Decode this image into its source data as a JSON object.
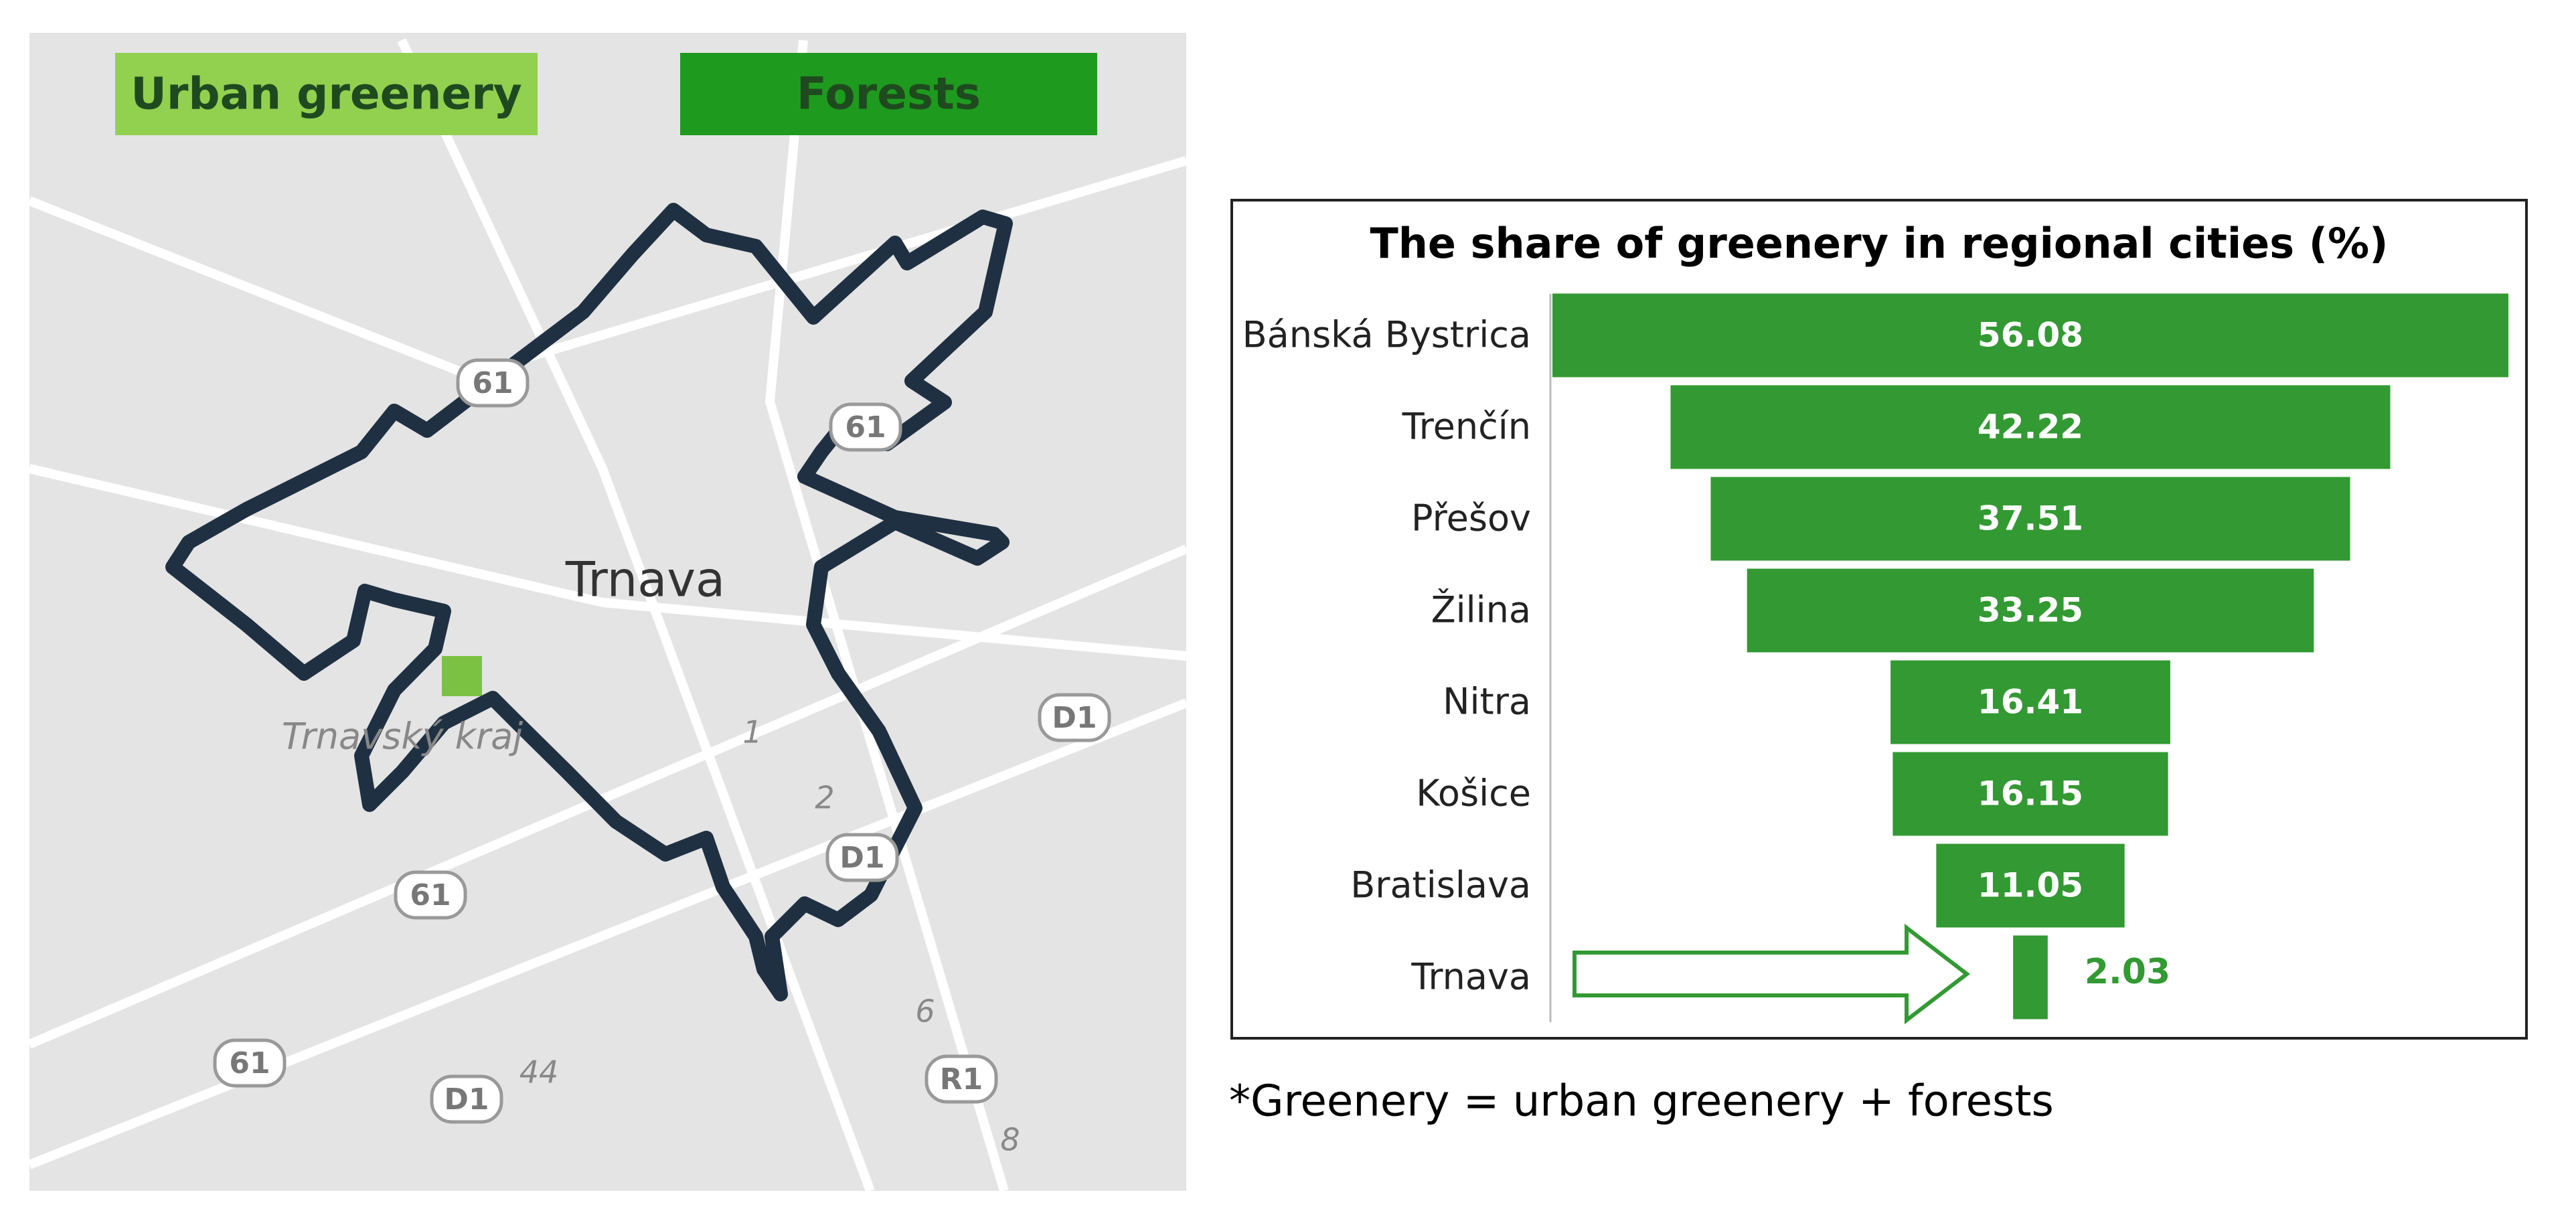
{
  "map": {
    "legend": [
      {
        "label": "Urban greenery",
        "color": "#92d050"
      },
      {
        "label": "Forests",
        "color": "#1e9a1e"
      }
    ],
    "city_label": "Trnava",
    "region_label": "Trnavský kraj",
    "road_labels": [
      "61",
      "61",
      "61",
      "61",
      "D1",
      "D1",
      "D1",
      "R1"
    ],
    "numbers": [
      "1",
      "2",
      "6",
      "8",
      "44"
    ]
  },
  "chart_data": {
    "type": "funnel",
    "title": "The share of greenery in regional cities (%)",
    "categories": [
      "Bánská Bystrica",
      "Trenčín",
      "Přešov",
      "Žilina",
      "Nitra",
      "Košice",
      "Bratislava",
      "Trnava"
    ],
    "values": [
      56.08,
      42.22,
      37.51,
      33.25,
      16.41,
      16.15,
      11.05,
      2.03
    ],
    "color": "#339933"
  },
  "footnote": "*Greenery = urban greenery + forests"
}
